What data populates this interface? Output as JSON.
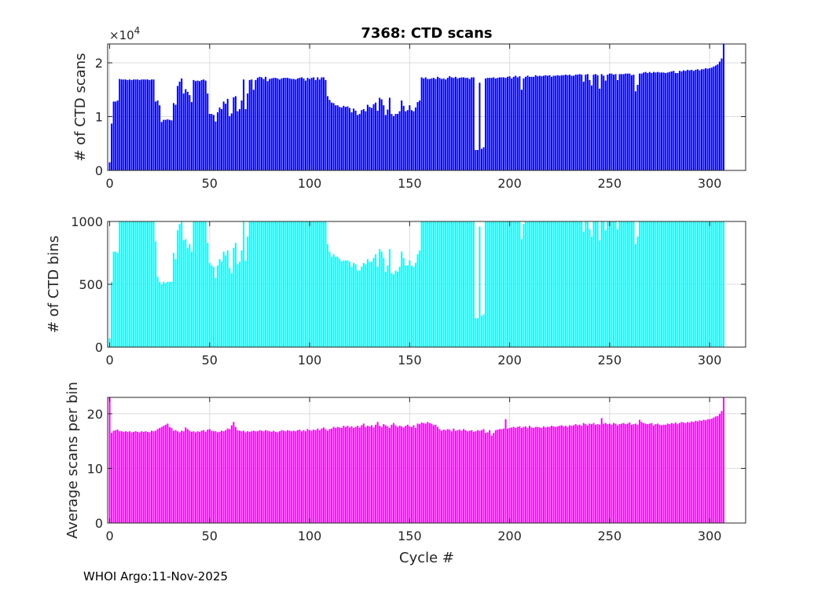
{
  "footer": "WHOI Argo:11-Nov-2025",
  "exponent_base": "×10",
  "exponent_power": "4",
  "chart_data": [
    {
      "type": "bar",
      "title": "7368: CTD scans",
      "xlabel": "",
      "ylabel": "# of CTD scans",
      "xlim": [
        -1,
        318
      ],
      "ylim": [
        0,
        23500
      ],
      "xticks": [
        0,
        50,
        100,
        150,
        200,
        250,
        300
      ],
      "yticks": [
        0,
        10000,
        20000
      ],
      "ytick_labels": [
        "0",
        "1",
        "2"
      ],
      "color": "#0000ff",
      "cycles": "0..317",
      "values": [
        1500,
        8700,
        12800,
        12800,
        13000,
        17000,
        16900,
        16900,
        16900,
        16800,
        16900,
        16800,
        16900,
        16900,
        16900,
        16800,
        16900,
        16900,
        16900,
        16900,
        16800,
        16900,
        16900,
        12800,
        13000,
        12100,
        9000,
        9400,
        9400,
        9500,
        9400,
        9300,
        12500,
        12200,
        15700,
        16500,
        17100,
        14300,
        15100,
        14600,
        14000,
        12700,
        16800,
        16600,
        16700,
        16600,
        16800,
        16900,
        16700,
        14300,
        10500,
        10500,
        10300,
        9100,
        10800,
        11700,
        11400,
        12800,
        12400,
        13300,
        10100,
        10600,
        13600,
        13800,
        11000,
        11400,
        13000,
        16900,
        11400,
        14300,
        16800,
        16900,
        15000,
        16800,
        17200,
        17400,
        17300,
        17000,
        17400,
        16600,
        17000,
        17100,
        17200,
        17200,
        17100,
        16900,
        17100,
        17200,
        17200,
        17200,
        17100,
        17000,
        17000,
        16900,
        17100,
        17200,
        17300,
        17100,
        16700,
        17200,
        17000,
        17200,
        17300,
        16800,
        17300,
        16900,
        17300,
        17300,
        16800,
        13800,
        13100,
        12600,
        12500,
        12100,
        12100,
        11800,
        11700,
        12000,
        11800,
        11900,
        11600,
        10800,
        11500,
        11100,
        10300,
        10500,
        11200,
        11400,
        11000,
        12200,
        11800,
        11600,
        12300,
        12600,
        11100,
        13500,
        13200,
        12100,
        10300,
        11300,
        13500,
        10500,
        10100,
        10500,
        10500,
        11000,
        13000,
        12000,
        11000,
        11200,
        12100,
        11200,
        11000,
        11700,
        12700,
        13000,
        17300,
        17100,
        17300,
        17000,
        17000,
        17100,
        17200,
        17000,
        17400,
        17200,
        17000,
        17100,
        16900,
        17200,
        17500,
        17300,
        17200,
        17400,
        17100,
        17200,
        17300,
        17300,
        17200,
        17200,
        17000,
        17300,
        17300,
        3800,
        3800,
        16300,
        4000,
        4300,
        17100,
        17200,
        17200,
        17200,
        17300,
        17100,
        17200,
        17300,
        17300,
        17300,
        17200,
        17400,
        17500,
        17100,
        17400,
        17600,
        17300,
        17500,
        15000,
        17100,
        17400,
        17600,
        17400,
        17400,
        17400,
        17700,
        17500,
        17600,
        17500,
        17600,
        17700,
        17600,
        17700,
        17400,
        17600,
        17600,
        17700,
        17600,
        17700,
        17700,
        17800,
        17700,
        17800,
        17600,
        17600,
        17800,
        17800,
        17900,
        17800,
        16500,
        17800,
        17900,
        16800,
        15800,
        17800,
        17900,
        17700,
        15200,
        17900,
        17600,
        16700,
        17800,
        18000,
        18000,
        17800,
        17900,
        16800,
        17900,
        17900,
        17900,
        18000,
        18000,
        18000,
        17700,
        17800,
        14700,
        15900,
        18000,
        18000,
        18200,
        18300,
        18100,
        18300,
        18100,
        18300,
        18200,
        18300,
        18200,
        18200,
        18200,
        18100,
        18200,
        18300,
        18400,
        18500,
        18100,
        18100,
        18500,
        18400,
        18600,
        18500,
        18700,
        18600,
        18700,
        18500,
        18700,
        18800,
        18600,
        18800,
        18800,
        19000,
        18900,
        19000,
        19100,
        19300,
        19500,
        19700,
        20200,
        20800,
        23500
      ]
    },
    {
      "type": "bar",
      "title": "",
      "xlabel": "",
      "ylabel": "# of CTD bins",
      "xlim": [
        -1,
        318
      ],
      "ylim": [
        0,
        1000
      ],
      "xticks": [
        0,
        50,
        100,
        150,
        200,
        250,
        300
      ],
      "yticks": [
        0,
        500,
        1000
      ],
      "ytick_labels": [
        "0",
        "500",
        "1000"
      ],
      "color": "#00ffff",
      "cycles": "0..317",
      "values": [
        70,
        520,
        760,
        760,
        750,
        1000,
        1000,
        1000,
        1000,
        1000,
        1000,
        1000,
        1000,
        1000,
        1000,
        1000,
        1000,
        1000,
        1000,
        1000,
        1000,
        1000,
        1000,
        840,
        560,
        520,
        500,
        520,
        510,
        520,
        520,
        520,
        750,
        700,
        930,
        980,
        1000,
        850,
        860,
        790,
        820,
        760,
        1000,
        1000,
        1000,
        1000,
        1000,
        1000,
        1000,
        830,
        670,
        650,
        640,
        550,
        650,
        700,
        680,
        760,
        730,
        770,
        630,
        590,
        790,
        830,
        660,
        680,
        770,
        1000,
        690,
        880,
        1000,
        1000,
        1000,
        1000,
        1000,
        1000,
        1000,
        1000,
        1000,
        1000,
        1000,
        1000,
        1000,
        1000,
        1000,
        1000,
        1000,
        1000,
        1000,
        1000,
        1000,
        1000,
        1000,
        1000,
        1000,
        1000,
        1000,
        1000,
        1000,
        1000,
        1000,
        1000,
        1000,
        1000,
        1000,
        1000,
        1000,
        1000,
        1000,
        820,
        760,
        720,
        740,
        720,
        720,
        700,
        680,
        690,
        690,
        690,
        680,
        640,
        670,
        660,
        610,
        610,
        640,
        670,
        660,
        700,
        680,
        680,
        710,
        740,
        640,
        780,
        760,
        710,
        600,
        650,
        780,
        590,
        580,
        610,
        600,
        640,
        760,
        710,
        650,
        650,
        690,
        650,
        640,
        670,
        740,
        770,
        1000,
        1000,
        1000,
        1000,
        1000,
        1000,
        1000,
        1000,
        1000,
        1000,
        1000,
        1000,
        1000,
        1000,
        1000,
        1000,
        1000,
        1000,
        1000,
        1000,
        1000,
        1000,
        1000,
        1000,
        1000,
        1000,
        1000,
        230,
        230,
        960,
        250,
        260,
        1000,
        1000,
        1000,
        1000,
        1000,
        1000,
        1000,
        1000,
        1000,
        1000,
        1000,
        1000,
        1000,
        1000,
        1000,
        1000,
        1000,
        1000,
        860,
        980,
        1000,
        1000,
        1000,
        1000,
        1000,
        1000,
        1000,
        1000,
        1000,
        1000,
        1000,
        1000,
        1000,
        1000,
        1000,
        1000,
        1000,
        1000,
        1000,
        1000,
        1000,
        1000,
        1000,
        1000,
        1000,
        1000,
        1000,
        1000,
        1000,
        920,
        1000,
        1000,
        940,
        880,
        1000,
        1000,
        1000,
        850,
        1000,
        1000,
        930,
        1000,
        1000,
        1000,
        1000,
        1000,
        940,
        1000,
        1000,
        1000,
        1000,
        1000,
        1000,
        1000,
        1000,
        820,
        880,
        1000,
        1000,
        1000,
        1000,
        1000,
        1000,
        1000,
        1000,
        1000,
        1000,
        1000,
        1000,
        1000,
        1000,
        1000,
        1000,
        1000,
        1000,
        1000,
        1000,
        1000,
        1000,
        1000,
        1000,
        1000,
        1000,
        1000,
        1000,
        1000,
        1000,
        1000,
        1000,
        1000,
        1000,
        1000,
        1000,
        1000,
        1000,
        1000,
        1000,
        1000,
        1000,
        1000
      ]
    },
    {
      "type": "bar",
      "title": "",
      "xlabel": "Cycle #",
      "ylabel": "Average scans per bin",
      "xlim": [
        -1,
        318
      ],
      "ylim": [
        0,
        23
      ],
      "xticks": [
        0,
        50,
        100,
        150,
        200,
        250,
        300
      ],
      "yticks": [
        0,
        10,
        20
      ],
      "ytick_labels": [
        "0",
        "10",
        "20"
      ],
      "color": "#ff00ff",
      "cycles": "0..317",
      "values": [
        23,
        16.5,
        16.9,
        17,
        17.1,
        16.8,
        16.8,
        16.7,
        16.8,
        16.7,
        16.8,
        16.6,
        16.7,
        16.8,
        16.7,
        16.6,
        16.8,
        16.7,
        16.8,
        16.7,
        16.6,
        16.9,
        16.8,
        16.9,
        17.2,
        17.4,
        17.6,
        17.8,
        18,
        18.2,
        17.6,
        17.4,
        16.9,
        17,
        16.8,
        16.6,
        16.9,
        16.8,
        17.5,
        17.2,
        16.9,
        16.7,
        16.8,
        16.6,
        16.8,
        16.7,
        16.9,
        17,
        16.7,
        17.1,
        17.2,
        16.9,
        16.8,
        16.8,
        16.6,
        16.7,
        16.9,
        16.8,
        17,
        17.3,
        17.2,
        17.9,
        18.5,
        17.6,
        17,
        16.9,
        16.8,
        16.9,
        16.6,
        16.8,
        16.7,
        16.8,
        16.9,
        16.8,
        16.8,
        17,
        16.9,
        16.8,
        17,
        16.9,
        16.8,
        16.7,
        16.9,
        16.7,
        16.6,
        16.8,
        17,
        16.9,
        16.8,
        17,
        16.9,
        16.8,
        16.9,
        16.8,
        17,
        17.1,
        16.8,
        17,
        16.8,
        17.2,
        17,
        16.9,
        17.1,
        17,
        17.3,
        17,
        17.3,
        17.5,
        17.2,
        16.9,
        17.2,
        17.3,
        17.6,
        17.4,
        17.6,
        17.5,
        17.4,
        17.8,
        17.6,
        17.8,
        17.5,
        17.7,
        17.4,
        17.6,
        17.8,
        17.5,
        17.9,
        18.2,
        17.6,
        17.8,
        17.7,
        17.9,
        17.5,
        18,
        18.5,
        17.8,
        17.6,
        18.1,
        17.9,
        17.7,
        17.4,
        18,
        18.3,
        17.9,
        17.6,
        17.8,
        17.7,
        17.5,
        17.8,
        18,
        17.7,
        17.6,
        17.9,
        17.4,
        18.2,
        18.1,
        18.4,
        18.3,
        18.2,
        18.5,
        18.3,
        18.2,
        17.9,
        18,
        17.6,
        17.2,
        16.9,
        17.1,
        17,
        17.2,
        17.1,
        16.8,
        17.3,
        16.9,
        17,
        17.1,
        16.9,
        17.2,
        17,
        16.8,
        16.9,
        17,
        16.7,
        16.8,
        17,
        16.9,
        17,
        17.2,
        16.5,
        16.6,
        17,
        16,
        16.5,
        17,
        17.1,
        17.2,
        17.2,
        17.3,
        19,
        17.3,
        17.4,
        17.5,
        17.6,
        17.4,
        17.6,
        17.7,
        17.4,
        17.6,
        17.7,
        17.4,
        17.8,
        17.5,
        17.4,
        17.6,
        17.6,
        17.5,
        17.4,
        17.7,
        17.5,
        17.6,
        17.6,
        17.8,
        17.7,
        17.6,
        17.7,
        17.8,
        17.9,
        17.7,
        17.8,
        17.6,
        17.9,
        17.8,
        17.9,
        18.1,
        17.9,
        18,
        17.8,
        18.3,
        18.1,
        17.9,
        18.2,
        18.1,
        18.3,
        18,
        18.1,
        18,
        19.2,
        18.2,
        18.3,
        18.1,
        18.2,
        18,
        18.3,
        18.2,
        17.9,
        18.1,
        18.2,
        18.3,
        18.1,
        18.2,
        18.4,
        18,
        18.1,
        18.2,
        18,
        18.9,
        18.5,
        18.3,
        18.2,
        18.1,
        18.2,
        18.3,
        17.9,
        18.1,
        18.2,
        18,
        17.9,
        18,
        18,
        18.2,
        18.1,
        18.3,
        18.2,
        18.4,
        18.1,
        18.3,
        18.5,
        18.4,
        18.3,
        18.5,
        18.4,
        18.6,
        18.5,
        18.7,
        18.6,
        18.8,
        18.7,
        18.9,
        18.8,
        19,
        19,
        19.1,
        19.3,
        19.5,
        19.6,
        20,
        20.5,
        23
      ]
    }
  ]
}
